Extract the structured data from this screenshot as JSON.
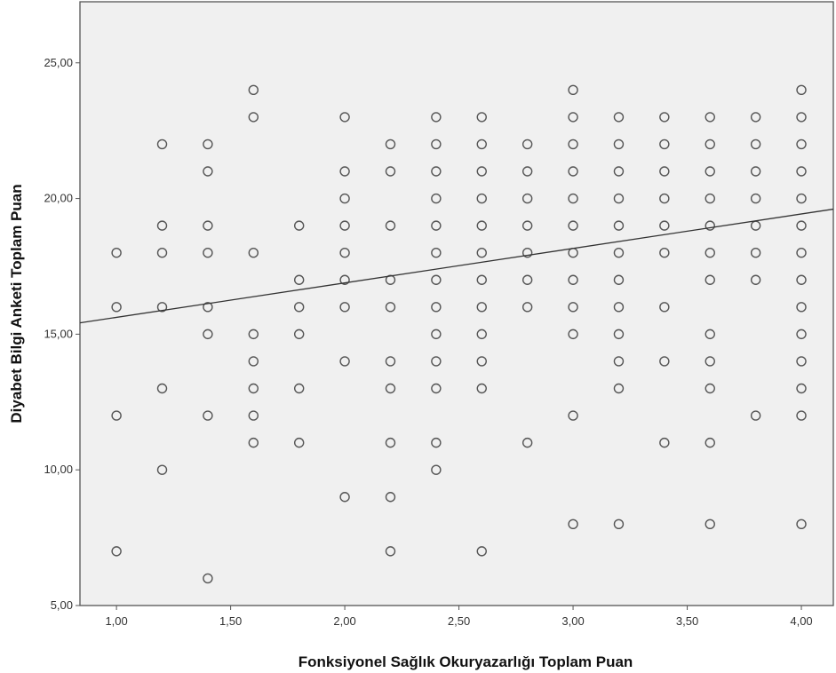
{
  "chart_data": {
    "type": "scatter",
    "title": "",
    "xlabel": "Fonksiyonel Sağlık Okuryazarlığı Toplam Puan",
    "ylabel": "Diyabet Bilgi Anketi Toplam Puan",
    "xlim": [
      0.84,
      4.14
    ],
    "ylim": [
      5,
      27.25
    ],
    "x_ticks": [
      1.0,
      1.5,
      2.0,
      2.5,
      3.0,
      3.5,
      4.0
    ],
    "x_tick_labels": [
      "1,00",
      "1,50",
      "2,00",
      "2,50",
      "3,00",
      "3,50",
      "4,00"
    ],
    "y_ticks": [
      5,
      10,
      15,
      20,
      25
    ],
    "y_tick_labels": [
      "5,00",
      "10,00",
      "15,00",
      "20,00",
      "25,00"
    ],
    "grid": false,
    "legend": "none",
    "plot_background": "#f0f0f0",
    "marker_color": "#555555",
    "fit_line": {
      "slope": 1.27,
      "intercept": 14.35
    },
    "points": [
      {
        "x": 1.0,
        "y": [
          18,
          16,
          12,
          7
        ]
      },
      {
        "x": 1.2,
        "y": [
          22,
          19,
          18,
          16,
          13,
          10
        ]
      },
      {
        "x": 1.4,
        "y": [
          22,
          21,
          19,
          18,
          16,
          15,
          12,
          6
        ]
      },
      {
        "x": 1.6,
        "y": [
          24,
          23,
          18,
          15,
          14,
          13,
          12,
          11
        ]
      },
      {
        "x": 1.8,
        "y": [
          19,
          17,
          16,
          15,
          13,
          11
        ]
      },
      {
        "x": 2.0,
        "y": [
          23,
          21,
          20,
          19,
          18,
          17,
          16,
          14,
          9
        ]
      },
      {
        "x": 2.2,
        "y": [
          22,
          21,
          19,
          17,
          16,
          14,
          13,
          11,
          9,
          7
        ]
      },
      {
        "x": 2.4,
        "y": [
          23,
          22,
          21,
          20,
          19,
          18,
          17,
          16,
          15,
          14,
          13,
          11,
          10
        ]
      },
      {
        "x": 2.6,
        "y": [
          23,
          22,
          21,
          20,
          19,
          18,
          17,
          16,
          15,
          14,
          13,
          7
        ]
      },
      {
        "x": 2.8,
        "y": [
          22,
          21,
          20,
          19,
          18,
          17,
          16,
          11
        ]
      },
      {
        "x": 3.0,
        "y": [
          24,
          23,
          22,
          21,
          20,
          19,
          18,
          17,
          16,
          15,
          12,
          8
        ]
      },
      {
        "x": 3.2,
        "y": [
          23,
          22,
          21,
          20,
          19,
          18,
          17,
          16,
          15,
          14,
          13,
          8
        ]
      },
      {
        "x": 3.4,
        "y": [
          23,
          22,
          21,
          20,
          19,
          18,
          16,
          14,
          11
        ]
      },
      {
        "x": 3.6,
        "y": [
          23,
          22,
          21,
          20,
          19,
          18,
          17,
          15,
          14,
          13,
          11,
          8
        ]
      },
      {
        "x": 3.8,
        "y": [
          23,
          22,
          21,
          20,
          19,
          18,
          17,
          12
        ]
      },
      {
        "x": 4.0,
        "y": [
          24,
          23,
          22,
          21,
          20,
          19,
          18,
          17,
          16,
          15,
          14,
          13,
          12,
          8
        ]
      }
    ]
  }
}
